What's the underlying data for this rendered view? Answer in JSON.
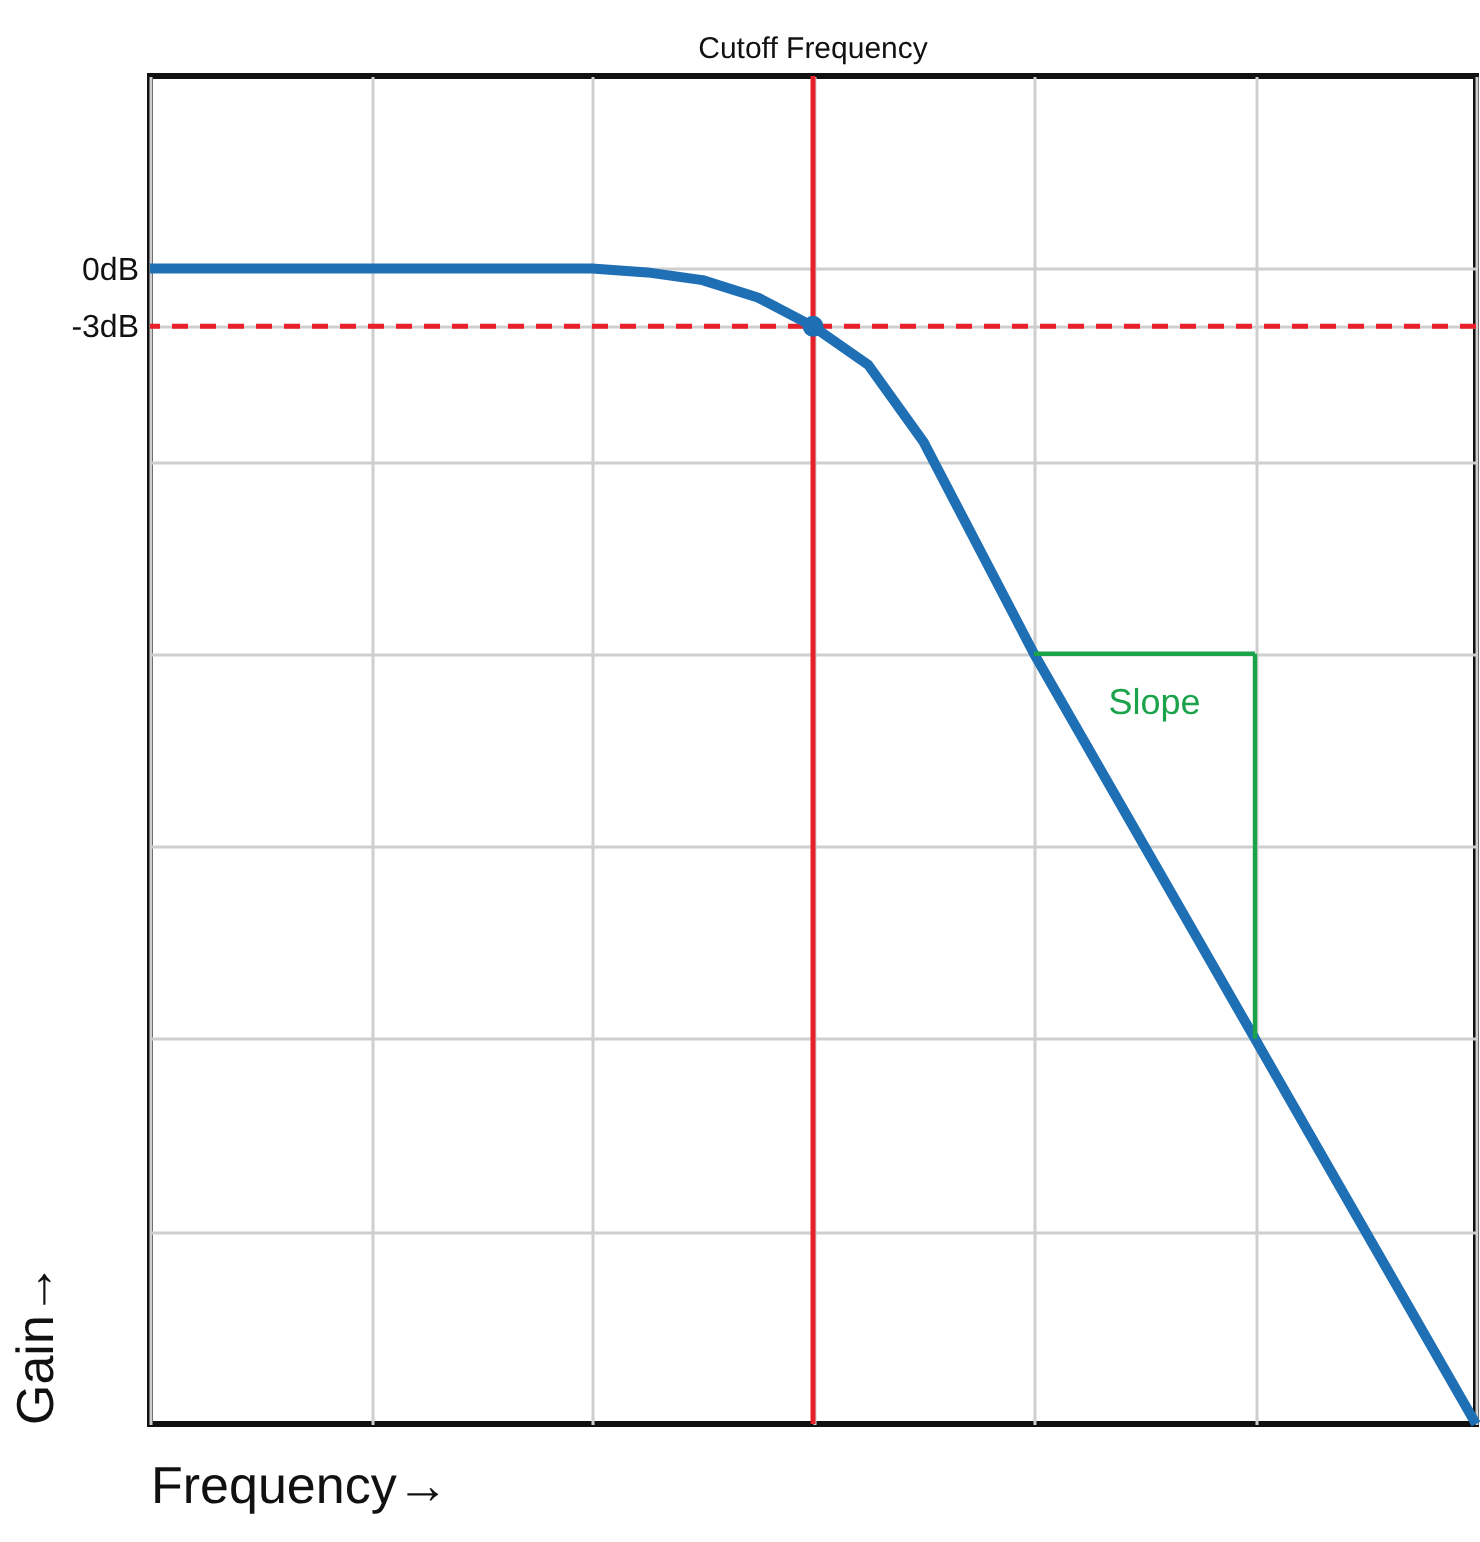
{
  "chart_data": {
    "type": "line",
    "xlabel": "Frequency→",
    "ylabel": "Gain→",
    "categories": [
      null,
      null,
      null,
      null,
      null,
      null,
      null,
      null,
      null,
      null,
      null,
      null,
      null,
      null,
      null,
      null,
      null,
      null,
      null,
      null,
      null,
      null,
      null,
      null,
      null
    ],
    "ylim": [
      -60,
      10
    ],
    "yticks": [
      {
        "value": 0,
        "label": "0dB"
      },
      {
        "value": -3,
        "label": "-3dB"
      },
      {
        "value": -10,
        "label": null
      },
      {
        "value": -20,
        "label": null
      },
      {
        "value": -30,
        "label": null
      },
      {
        "value": -40,
        "label": null
      },
      {
        "value": -50,
        "label": null
      }
    ],
    "tick_labels": "y",
    "grid": true,
    "series": [
      {
        "color": "#1f6fb5",
        "values": [
          0,
          0,
          0,
          0,
          0,
          0,
          0,
          0,
          0,
          -0.2,
          -0.6,
          -1.5,
          -3,
          -5,
          -9,
          -14.5,
          -20,
          -25,
          -30,
          -35,
          -40,
          -45,
          -50,
          -55,
          -60
        ]
      },
      {
        "type": "scatter",
        "color": "#1f6fb5",
        "values": [
          null,
          null,
          null,
          null,
          null,
          null,
          null,
          null,
          null,
          null,
          null,
          null,
          -3,
          null,
          null,
          null,
          null,
          null,
          null,
          null,
          null,
          null,
          null,
          null,
          null
        ]
      },
      {
        "color": "#1aa34a",
        "values": [
          null,
          null,
          null,
          null,
          null,
          null,
          null,
          null,
          null,
          null,
          null,
          null,
          null,
          null,
          null,
          null,
          -20,
          null,
          null,
          null,
          -20,
          null,
          null,
          null,
          null
        ],
        "errors": [
          null,
          null,
          null,
          null,
          null,
          null,
          null,
          null,
          null,
          null,
          null,
          null,
          null,
          null,
          null,
          null,
          null,
          null,
          null,
          null,
          [
            -40,
            -20
          ],
          null,
          null,
          null,
          null
        ]
      }
    ],
    "ref_lines": [
      {
        "axis": "y",
        "value": -3,
        "color": "#e8202a",
        "line_style": "dashed"
      }
    ],
    "annotations": [
      "Cutoff Frequency",
      "Slope"
    ]
  }
}
